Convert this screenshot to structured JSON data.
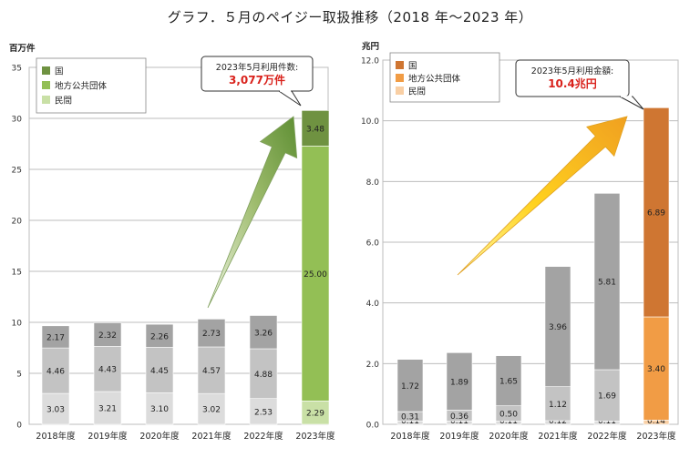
{
  "title": "グラフ．５月のペイジー取扱推移（2018 年～2023 年）",
  "colors": {
    "gray_dark": "#a3a3a3",
    "gray_mid": "#c3c3c3",
    "gray_light": "#dcdcdc",
    "green_national": "#6f9241",
    "green_local": "#93bf55",
    "green_private": "#c9e0a6",
    "orange_national": "#cf7632",
    "orange_local": "#f19c45",
    "orange_private": "#f9cfa4"
  },
  "chart_data": [
    {
      "type": "bar",
      "stacked": true,
      "ylabel": "百万件",
      "ylim": [
        0,
        35
      ],
      "yticks": [
        "0",
        "5",
        "10",
        "15",
        "20",
        "25",
        "30",
        "35"
      ],
      "grid": true,
      "legend_position": "top-left",
      "categories": [
        "2018年度",
        "2019年度",
        "2020年度",
        "2021年度",
        "2022年度",
        "2023年度"
      ],
      "series": [
        {
          "name": "民間",
          "values": [
            3.03,
            3.21,
            3.1,
            3.02,
            2.53,
            2.29
          ],
          "labels": [
            "3.03",
            "3.21",
            "3.10",
            "3.02",
            "2.53",
            "2.29"
          ]
        },
        {
          "name": "地方公共団体",
          "values": [
            4.46,
            4.43,
            4.45,
            4.57,
            4.88,
            25.0
          ],
          "labels": [
            "4.46",
            "4.43",
            "4.45",
            "4.57",
            "4.88",
            "25.00"
          ]
        },
        {
          "name": "国",
          "values": [
            2.17,
            2.32,
            2.26,
            2.73,
            3.26,
            3.48
          ],
          "labels": [
            "2.17",
            "2.32",
            "2.26",
            "2.73",
            "3.26",
            "3.48"
          ]
        }
      ],
      "callout": {
        "line1": "2023年5月利用件数:",
        "line2": "3,077万件"
      }
    },
    {
      "type": "bar",
      "stacked": true,
      "ylabel": "兆円",
      "ylim": [
        0,
        12
      ],
      "yticks": [
        "0.0",
        "2.0",
        "4.0",
        "6.0",
        "8.0",
        "10.0",
        "12.0"
      ],
      "grid": true,
      "legend_position": "top-left",
      "categories": [
        "2018年度",
        "2019年度",
        "2020年度",
        "2021年度",
        "2022年度",
        "2023年度"
      ],
      "series": [
        {
          "name": "民間",
          "values": [
            0.11,
            0.11,
            0.11,
            0.12,
            0.11,
            0.14
          ],
          "labels": [
            "0.11",
            "0.11",
            "0.11",
            "0.12",
            "0.11",
            "0.14"
          ]
        },
        {
          "name": "地方公共団体",
          "values": [
            0.31,
            0.36,
            0.5,
            1.12,
            1.69,
            3.4
          ],
          "labels": [
            "0.31",
            "0.36",
            "0.50",
            "1.12",
            "1.69",
            "3.40"
          ]
        },
        {
          "name": "国",
          "values": [
            1.72,
            1.89,
            1.65,
            3.96,
            5.81,
            6.89
          ],
          "labels": [
            "1.72",
            "1.89",
            "1.65",
            "3.96",
            "5.81",
            "6.89"
          ]
        }
      ],
      "callout": {
        "line1": "2023年5月利用金額:",
        "line2": "10.4兆円"
      }
    }
  ]
}
